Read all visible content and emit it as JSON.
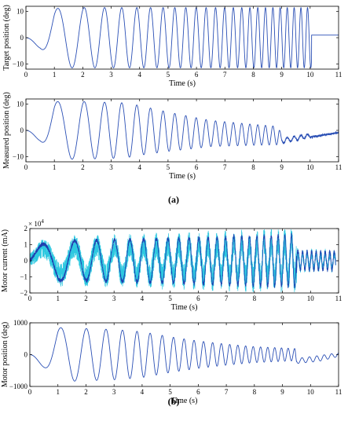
{
  "panel_labels": [
    "(a)",
    "(b)"
  ],
  "colors": {
    "line": "#2a4fb5",
    "noise_light": "#2ec8e0",
    "noise_dark": "#1f3fb0",
    "axis": "#000000"
  },
  "chart_data": [
    {
      "type": "line",
      "name_panel": "(a)",
      "description_key": "chirp_target",
      "xlabel": "Time (s)",
      "ylabel": "Target position (deg)",
      "xlim": [
        0,
        11
      ],
      "ylim": [
        -12,
        12
      ],
      "xticks": [
        0,
        1,
        2,
        3,
        4,
        5,
        6,
        7,
        8,
        9,
        10,
        11
      ],
      "yticks": [
        -10,
        0,
        10
      ],
      "series": [
        {
          "signal": "chirp",
          "amplitude_profile": [
            [
              0.0,
              0
            ],
            [
              0.5,
              4
            ],
            [
              1.0,
              11
            ],
            [
              1.3,
              11.5
            ],
            [
              10.05,
              11.5
            ]
          ],
          "hold_after": {
            "t": 10.05,
            "value": 1.0
          },
          "frequency_hz": {
            "start": 0.45,
            "end": 4.4,
            "t_end": 10.05
          },
          "points_preview": [
            [
              0,
              0
            ],
            [
              0.5,
              -4
            ],
            [
              1.0,
              -11
            ],
            [
              1.3,
              0
            ],
            [
              1.6,
              11
            ],
            [
              10.05,
              0
            ],
            [
              10.1,
              1
            ],
            [
              11,
              1
            ]
          ]
        }
      ]
    },
    {
      "type": "line",
      "name_panel": "(a)",
      "description_key": "chirp_measured",
      "xlabel": "Time (s)",
      "ylabel": "Measured position (deg)",
      "xlim": [
        0,
        11
      ],
      "ylim": [
        -12,
        12
      ],
      "xticks": [
        0,
        1,
        2,
        3,
        4,
        5,
        6,
        7,
        8,
        9,
        10,
        11
      ],
      "yticks": [
        -10,
        0,
        10
      ],
      "series": [
        {
          "signal": "chirp",
          "amplitude_profile": [
            [
              0.0,
              0
            ],
            [
              0.5,
              4
            ],
            [
              1.0,
              11
            ],
            [
              2.0,
              11
            ],
            [
              3.5,
              10.5
            ],
            [
              5.0,
              7.5
            ],
            [
              6.5,
              5
            ],
            [
              8.0,
              4
            ],
            [
              8.9,
              3.5
            ],
            [
              9.0,
              1
            ],
            [
              11,
              0.5
            ]
          ],
          "drift_profile": [
            [
              0,
              0
            ],
            [
              1,
              0
            ],
            [
              4,
              0
            ],
            [
              6,
              -1
            ],
            [
              8.9,
              -2
            ],
            [
              9.0,
              -4
            ],
            [
              10,
              -2
            ],
            [
              11,
              -0.5
            ]
          ],
          "frequency_hz": {
            "start": 0.45,
            "end": 4.4,
            "t_end": 10.05
          },
          "points_preview": [
            [
              0,
              0
            ],
            [
              1.0,
              -11
            ],
            [
              1.6,
              10.5
            ],
            [
              3.5,
              10
            ],
            [
              5.5,
              6
            ],
            [
              8.9,
              -5
            ],
            [
              9.0,
              -4
            ],
            [
              11,
              -0.5
            ]
          ]
        }
      ]
    },
    {
      "type": "line",
      "name_panel": "(b)",
      "description_key": "motor_current",
      "xlabel": "Time (s)",
      "ylabel": "Motor current (mA)",
      "y_multiplier_label": "× 10",
      "y_multiplier_exp": "4",
      "xlim": [
        0,
        11
      ],
      "ylim": [
        -2,
        2
      ],
      "xticks": [
        0,
        1,
        2,
        3,
        4,
        5,
        6,
        7,
        8,
        9,
        10,
        11
      ],
      "yticks": [
        -2,
        -1,
        0,
        1,
        2
      ],
      "series": [
        {
          "signal": "noisy_chirp",
          "envelope": [
            [
              0,
              0.8
            ],
            [
              0.5,
              1.1
            ],
            [
              1.0,
              1.3
            ],
            [
              2,
              1.3
            ],
            [
              3,
              1.35
            ],
            [
              5,
              1.45
            ],
            [
              7,
              1.55
            ],
            [
              9.5,
              1.7
            ],
            [
              9.55,
              0.6
            ],
            [
              10.9,
              0.6
            ]
          ],
          "frequency_hz": {
            "start": 0.45,
            "end": 4.4,
            "t_end": 9.5
          }
        }
      ]
    },
    {
      "type": "line",
      "name_panel": "(b)",
      "description_key": "motor_position",
      "xlabel": "Time (s)",
      "ylabel": "Motor position (deg)",
      "xlim": [
        0,
        11
      ],
      "ylim": [
        -1000,
        1000
      ],
      "xticks": [
        0,
        1,
        2,
        3,
        4,
        5,
        6,
        7,
        8,
        9,
        10,
        11
      ],
      "yticks": [
        -1000,
        0,
        1000
      ],
      "series": [
        {
          "signal": "chirp",
          "amplitude_profile": [
            [
              0,
              0
            ],
            [
              0.5,
              400
            ],
            [
              1.0,
              850
            ],
            [
              2.0,
              820
            ],
            [
              3,
              790
            ],
            [
              4,
              720
            ],
            [
              5,
              560
            ],
            [
              6,
              430
            ],
            [
              7,
              330
            ],
            [
              8,
              250
            ],
            [
              9,
              210
            ],
            [
              9.45,
              190
            ],
            [
              9.5,
              80
            ],
            [
              10.3,
              90
            ],
            [
              11,
              60
            ]
          ],
          "drift_profile": [
            [
              0,
              0
            ],
            [
              9.45,
              0
            ],
            [
              9.5,
              -200
            ],
            [
              10.3,
              -120
            ],
            [
              11,
              0
            ]
          ],
          "frequency_hz": {
            "start": 0.45,
            "end": 4.4,
            "t_end": 9.5
          },
          "points_preview": [
            [
              0,
              0
            ],
            [
              0.8,
              -850
            ],
            [
              1.3,
              820
            ],
            [
              9.5,
              -300
            ],
            [
              11,
              30
            ]
          ]
        }
      ]
    }
  ]
}
